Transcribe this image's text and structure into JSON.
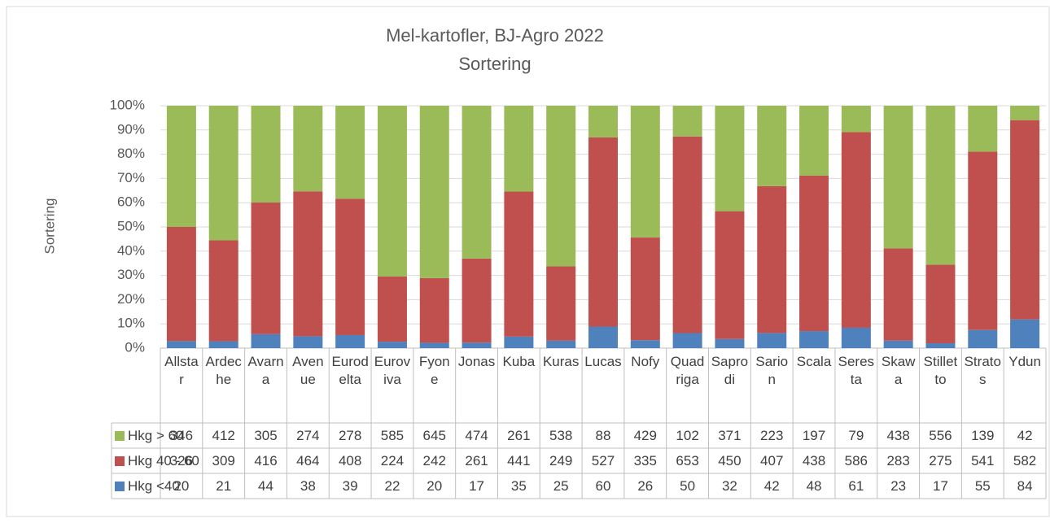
{
  "chart_data": {
    "type": "stacked-percent-bar",
    "title": "Mel-kartofler, BJ-Agro 2022",
    "subtitle": "Sortering",
    "y_label": "Sortering",
    "categories": [
      "Allstar",
      "Ardeche",
      "Avarna",
      "Avenue",
      "Eurodelta",
      "Euroviva",
      "Fyone",
      "Jonas",
      "Kuba",
      "Kuras",
      "Lucas",
      "Nofy",
      "Quadriga",
      "Saprodi",
      "Sarion",
      "Scala",
      "Seresta",
      "Skawa",
      "Stilletto",
      "Stratos",
      "Ydun"
    ],
    "series": [
      {
        "name": "Hkg > 60",
        "color": "#9bbb59",
        "values": [
          346,
          412,
          305,
          274,
          278,
          585,
          645,
          474,
          261,
          538,
          88,
          429,
          102,
          371,
          223,
          197,
          79,
          438,
          556,
          139,
          42
        ]
      },
      {
        "name": "Hkg 40 - 60",
        "color": "#c0504d",
        "values": [
          326,
          309,
          416,
          464,
          408,
          224,
          242,
          261,
          441,
          249,
          527,
          335,
          653,
          450,
          407,
          438,
          586,
          283,
          275,
          541,
          582
        ]
      },
      {
        "name": "Hkg <40",
        "color": "#4f81bd",
        "values": [
          20,
          21,
          44,
          38,
          39,
          22,
          20,
          17,
          35,
          25,
          60,
          26,
          50,
          32,
          42,
          48,
          61,
          23,
          17,
          55,
          84
        ]
      }
    ],
    "ylim": [
      0,
      100
    ],
    "yticks": [
      {
        "value": 0,
        "label": "0%"
      },
      {
        "value": 10,
        "label": "10%"
      },
      {
        "value": 20,
        "label": "20%"
      },
      {
        "value": 30,
        "label": "30%"
      },
      {
        "value": 40,
        "label": "40%"
      },
      {
        "value": 50,
        "label": "50%"
      },
      {
        "value": 60,
        "label": "60%"
      },
      {
        "value": 70,
        "label": "70%"
      },
      {
        "value": 80,
        "label": "80%"
      },
      {
        "value": 90,
        "label": "90%"
      },
      {
        "value": 100,
        "label": "100%"
      }
    ],
    "grid": true
  }
}
